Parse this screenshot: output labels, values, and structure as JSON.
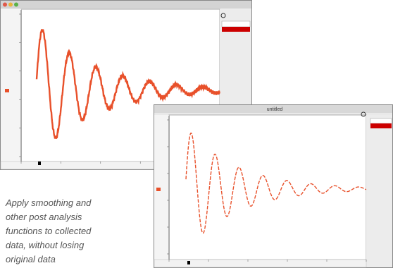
{
  "caption": {
    "lines": [
      "Apply smoothing and",
      "other post analysis",
      "functions to collected",
      "data, without losing",
      "original data"
    ]
  },
  "window_2": {
    "title": "untitled"
  }
}
